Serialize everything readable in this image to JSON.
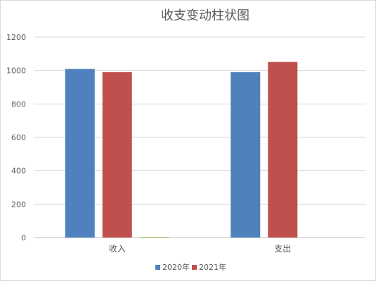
{
  "chart_data": {
    "type": "bar",
    "title": "收支变动柱状图",
    "categories": [
      "收入",
      "支出"
    ],
    "series": [
      {
        "name": "2020年",
        "color": "#4F81BD",
        "values": [
          1010,
          990
        ]
      },
      {
        "name": "2021年",
        "color": "#C0504D",
        "values": [
          990,
          1052
        ]
      },
      {
        "name": "",
        "color": "#9BBB59",
        "values": [
          4,
          0
        ]
      }
    ],
    "ylim": [
      0,
      1200
    ],
    "yticks": [
      0,
      200,
      400,
      600,
      800,
      1000,
      1200
    ],
    "grid": true,
    "legend_position": "bottom"
  }
}
